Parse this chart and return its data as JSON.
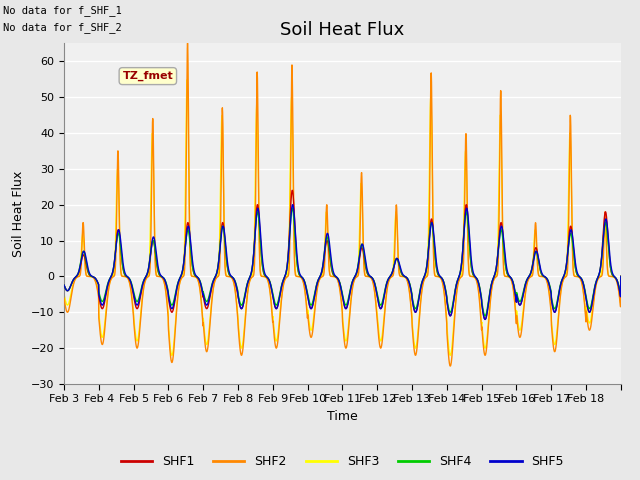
{
  "title": "Soil Heat Flux",
  "ylabel": "Soil Heat Flux",
  "xlabel": "Time",
  "ylim": [
    -30,
    65
  ],
  "yticks": [
    -30,
    -20,
    -10,
    0,
    10,
    20,
    30,
    40,
    50,
    60
  ],
  "colors": {
    "SHF1": "#cc0000",
    "SHF2": "#ff8800",
    "SHF3": "#ffff00",
    "SHF4": "#00cc00",
    "SHF5": "#0000cc"
  },
  "legend_label": "TZ_fmet",
  "note1": "No data for f_SHF_1",
  "note2": "No data for f_SHF_2",
  "x_tick_labels": [
    "Feb 3",
    "Feb 4",
    "Feb 5",
    "Feb 6",
    "Feb 7",
    "Feb 8",
    "Feb 9",
    "Feb 10",
    "Feb 11",
    "Feb 12",
    "Feb 13",
    "Feb 14",
    "Feb 15",
    "Feb 16",
    "Feb 17",
    "Feb 18"
  ],
  "bg_color": "#e8e8e8",
  "plot_bg": "#f0f0f0",
  "grid_color": "#ffffff",
  "title_fontsize": 13,
  "axis_fontsize": 9,
  "tick_fontsize": 8,
  "n_days": 16,
  "pts_per_day": 144
}
